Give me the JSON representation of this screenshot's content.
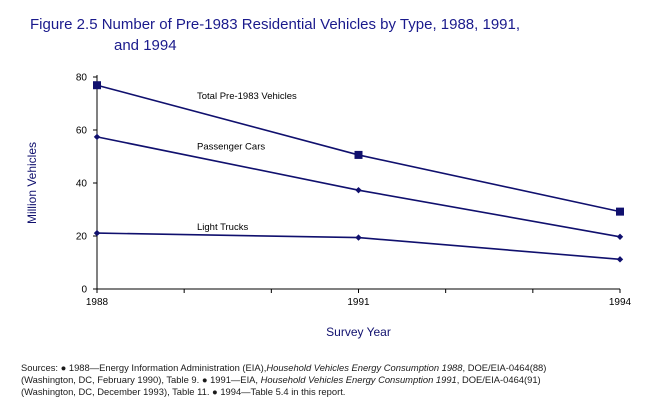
{
  "title_line1": "Figure 2.5  Number of Pre-1983 Residential Vehicles by Type, 1988, 1991,",
  "title_line2": "and 1994",
  "chart_data": {
    "type": "line",
    "title": "Figure 2.5  Number of Pre-1983 Residential Vehicles by Type, 1988, 1991, and 1994",
    "xlabel": "Survey Year",
    "ylabel": "Million Vehicles",
    "x": [
      1988,
      1991,
      1994
    ],
    "xticks": [
      "1988",
      "1991",
      "1994"
    ],
    "yticks": [
      "0",
      "20",
      "40",
      "60",
      "80"
    ],
    "ylim": [
      0,
      80
    ],
    "grid": false,
    "legend": "none (series labeled directly on lines)",
    "series": [
      {
        "name": "Total Pre-1983 Vehicles",
        "values": [
          76.9,
          50.6,
          29.2
        ],
        "marker": "square",
        "color": "#10106e"
      },
      {
        "name": "Passenger Cars",
        "values": [
          57.4,
          37.3,
          19.7
        ],
        "marker": "diamond",
        "color": "#10106e"
      },
      {
        "name": "Light Trucks",
        "values": [
          21.1,
          19.4,
          11.2
        ],
        "marker": "diamond",
        "color": "#10106e"
      }
    ]
  },
  "sources": {
    "line1_a": "Sources:  ● 1988—Energy Information Administration (EIA),",
    "line1_b": "Household Vehicles Energy Consumption 1988",
    "line1_c": ", DOE/EIA-0464(88)",
    "line2_a": "(Washington, DC, February 1990), Table 9.     ● 1991—EIA, ",
    "line2_b": "Household Vehicles Energy Consumption 1991",
    "line2_c": ", DOE/EIA-0464(91)",
    "line3": "(Washington, DC, December 1993), Table 11.  ● 1994—Table 5.4 in this report."
  }
}
